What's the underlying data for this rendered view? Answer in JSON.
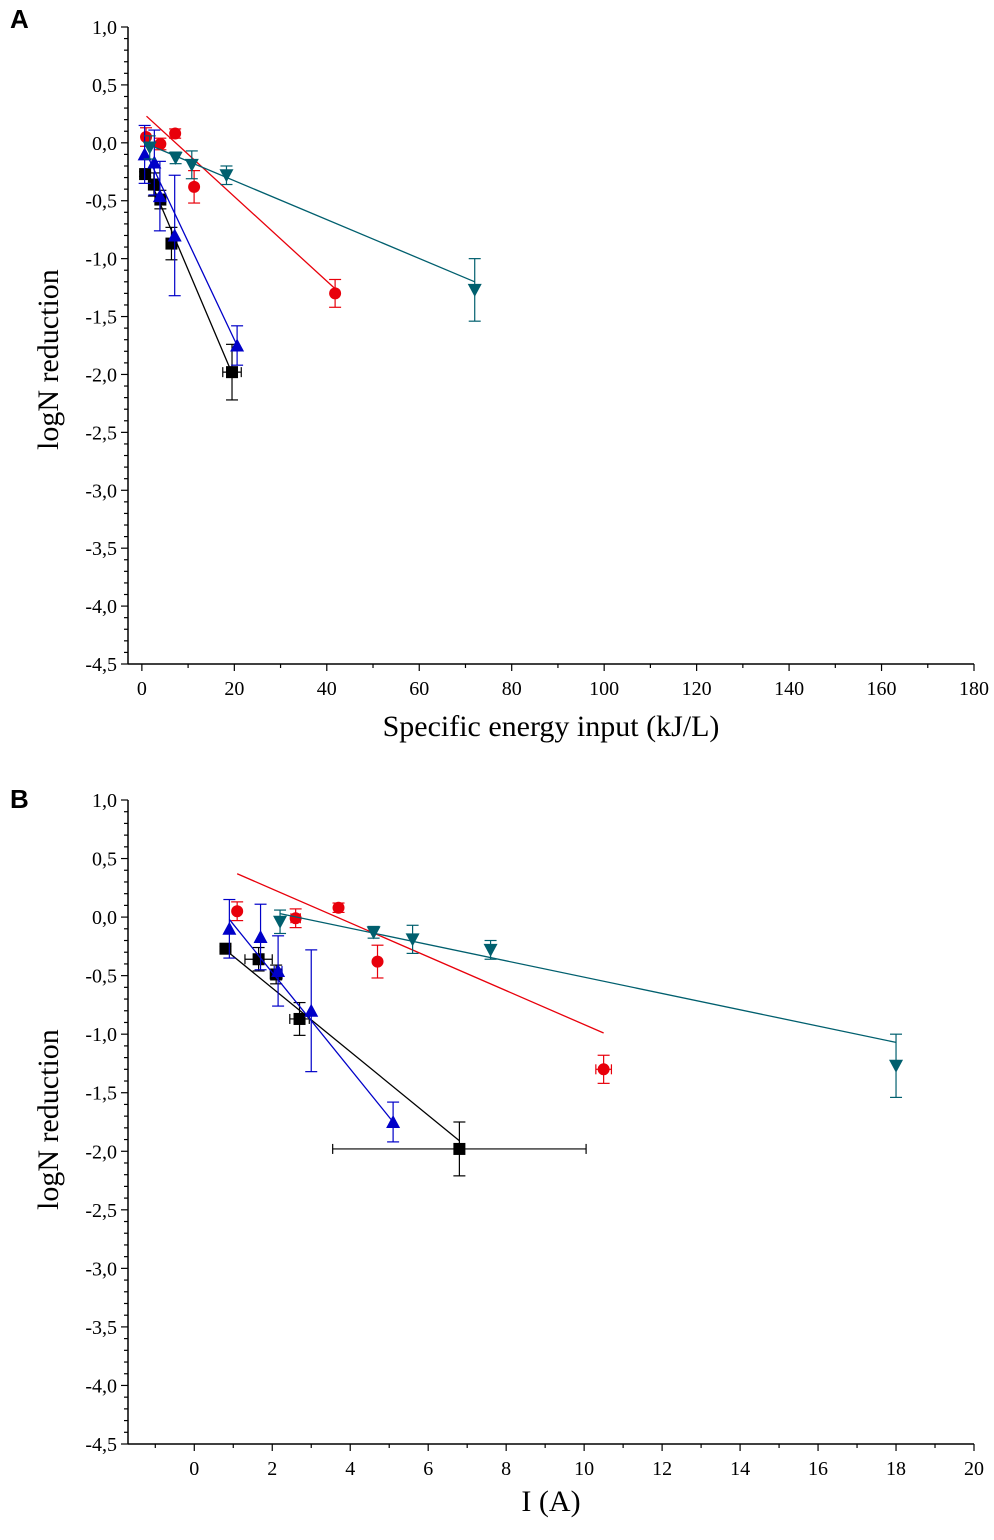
{
  "panels": [
    {
      "letter": "A"
    },
    {
      "letter": "B"
    }
  ],
  "colors": {
    "black": "#000000",
    "red": "#e8000b",
    "blue": "#0000c8",
    "teal": "#005f6e"
  },
  "chart_data": [
    {
      "type": "scatter",
      "title": "",
      "xlabel": "Specific energy input (kJ/L)",
      "ylabel": "logN reduction",
      "xlim": [
        -3,
        180
      ],
      "ylim": [
        -4.5,
        1.0
      ],
      "xticks": [
        "0",
        "20",
        "40",
        "60",
        "80",
        "100",
        "120",
        "140",
        "160",
        "180"
      ],
      "yticks": [
        "1,0",
        "0,5",
        "0,0",
        "-0,5",
        "-1,0",
        "-1,5",
        "-2,0",
        "-2,5",
        "-3,0",
        "-3,5",
        "-4,0",
        "-4,5"
      ],
      "grid": false,
      "series": [
        {
          "marker": "square",
          "color": "#000000",
          "x": [
            0.7,
            2.6,
            4.0,
            6.4,
            19.5
          ],
          "y": [
            -0.27,
            -0.36,
            -0.49,
            -0.87,
            -1.98
          ],
          "yerr": [
            0.02,
            0.1,
            0.08,
            0.14,
            0.24
          ],
          "xerr": [
            0,
            0,
            0,
            0,
            2.0
          ],
          "fit": [
            [
              0.7,
              -0.22
            ],
            [
              19.5,
              -1.99
            ]
          ]
        },
        {
          "marker": "circle",
          "color": "#e8000b",
          "x": [
            0.9,
            4.0,
            7.2,
            11.3,
            41.8
          ],
          "y": [
            0.05,
            -0.01,
            0.08,
            -0.38,
            -1.3
          ],
          "yerr": [
            0.08,
            0.05,
            0.04,
            0.14,
            0.12
          ],
          "xerr": [
            0,
            0,
            0,
            0,
            0
          ],
          "fit": [
            [
              1.0,
              0.23
            ],
            [
              41.8,
              -1.26
            ]
          ]
        },
        {
          "marker": "triangle-up",
          "color": "#0000c8",
          "x": [
            0.6,
            2.7,
            3.9,
            7.1,
            20.6
          ],
          "y": [
            -0.1,
            -0.17,
            -0.46,
            -0.8,
            -1.75
          ],
          "yerr": [
            0.25,
            0.28,
            0.3,
            0.52,
            0.17
          ],
          "xerr": [
            0,
            0,
            0,
            0,
            0
          ],
          "fit": [
            [
              0.6,
              -0.06
            ],
            [
              20.6,
              -1.75
            ]
          ]
        },
        {
          "marker": "triangle-down",
          "color": "#005f6e",
          "x": [
            1.7,
            7.3,
            10.8,
            18.3,
            72.0
          ],
          "y": [
            -0.04,
            -0.13,
            -0.19,
            -0.28,
            -1.27
          ],
          "yerr": [
            0.1,
            0.05,
            0.12,
            0.08,
            0.27
          ],
          "xerr": [
            0,
            0,
            0,
            0,
            0
          ],
          "fit": [
            [
              1.7,
              -0.02
            ],
            [
              72.0,
              -1.2
            ]
          ]
        }
      ]
    },
    {
      "type": "scatter",
      "title": "",
      "xlabel": "I (A)",
      "ylabel": "logN reduction",
      "xlim": [
        -1.7,
        20
      ],
      "ylim": [
        -4.5,
        1.0
      ],
      "xticks": [
        "0",
        "2",
        "4",
        "6",
        "8",
        "10",
        "12",
        "14",
        "16",
        "18",
        "20"
      ],
      "yticks": [
        "1,0",
        "0,5",
        "0,0",
        "-0,5",
        "-1,0",
        "-1,5",
        "-2,0",
        "-2,5",
        "-3,0",
        "-3,5",
        "-4,0",
        "-4,5"
      ],
      "grid": false,
      "series": [
        {
          "marker": "square",
          "color": "#000000",
          "x": [
            0.8,
            1.65,
            2.1,
            2.7,
            6.8
          ],
          "y": [
            -0.27,
            -0.36,
            -0.49,
            -0.87,
            -1.98
          ],
          "yerr": [
            0.02,
            0.1,
            0.08,
            0.14,
            0.23
          ],
          "xerr": [
            0.02,
            0.35,
            0.15,
            0.25,
            3.25
          ],
          "fit": [
            [
              0.8,
              -0.28
            ],
            [
              6.8,
              -1.91
            ]
          ]
        },
        {
          "marker": "circle",
          "color": "#e8000b",
          "x": [
            1.1,
            2.6,
            3.7,
            4.7,
            10.5
          ],
          "y": [
            0.05,
            -0.01,
            0.08,
            -0.38,
            -1.3
          ],
          "yerr": [
            0.08,
            0.08,
            0.04,
            0.14,
            0.12
          ],
          "xerr": [
            0,
            0.12,
            0,
            0,
            0.2
          ],
          "fit": [
            [
              1.1,
              0.37
            ],
            [
              10.5,
              -0.99
            ]
          ]
        },
        {
          "marker": "triangle-up",
          "color": "#0000c8",
          "x": [
            0.9,
            1.7,
            2.15,
            3.0,
            5.1
          ],
          "y": [
            -0.1,
            -0.17,
            -0.46,
            -0.8,
            -1.75
          ],
          "yerr": [
            0.25,
            0.28,
            0.3,
            0.52,
            0.17
          ],
          "xerr": [
            0,
            0,
            0.1,
            0,
            0
          ],
          "fit": [
            [
              0.9,
              -0.02
            ],
            [
              5.1,
              -1.75
            ]
          ]
        },
        {
          "marker": "triangle-down",
          "color": "#005f6e",
          "x": [
            2.2,
            4.6,
            5.6,
            7.6,
            18.0
          ],
          "y": [
            -0.04,
            -0.13,
            -0.19,
            -0.28,
            -1.27
          ],
          "yerr": [
            0.1,
            0.05,
            0.12,
            0.08,
            0.27
          ],
          "xerr": [
            0,
            0,
            0,
            0,
            0
          ],
          "fit": [
            [
              2.2,
              0.03
            ],
            [
              18.0,
              -1.07
            ]
          ]
        }
      ]
    }
  ]
}
